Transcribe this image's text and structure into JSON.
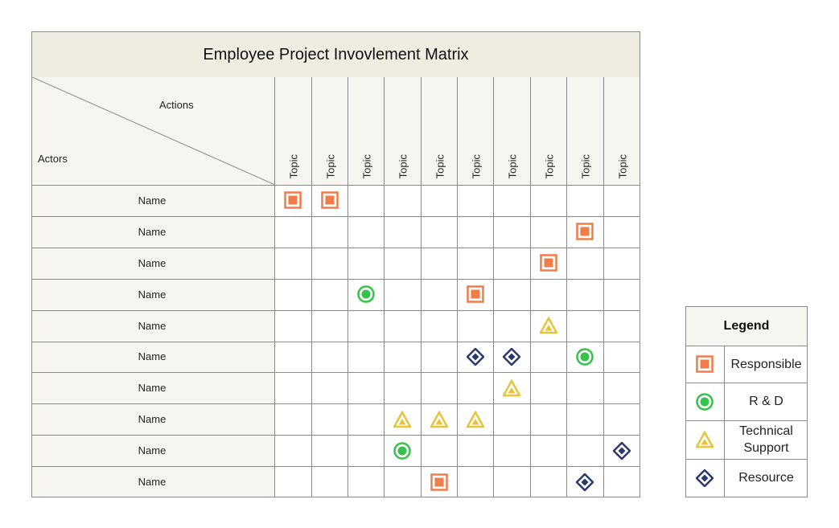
{
  "title": "Employee Project Invovlement Matrix",
  "corner": {
    "actions_label": "Actions",
    "actors_label": "Actors"
  },
  "columns": [
    "Topic",
    "Topic",
    "Topic",
    "Topic",
    "Topic",
    "Topic",
    "Topic",
    "Topic",
    "Topic",
    "Topic"
  ],
  "rows": [
    "Name",
    "Name",
    "Name",
    "Name",
    "Name",
    "Name",
    "Name",
    "Name",
    "Name",
    "Name"
  ],
  "marks": [
    {
      "row": 0,
      "col": 0,
      "type": "responsible"
    },
    {
      "row": 0,
      "col": 1,
      "type": "responsible"
    },
    {
      "row": 1,
      "col": 8,
      "type": "responsible"
    },
    {
      "row": 2,
      "col": 7,
      "type": "responsible"
    },
    {
      "row": 3,
      "col": 2,
      "type": "rnd"
    },
    {
      "row": 3,
      "col": 5,
      "type": "responsible"
    },
    {
      "row": 4,
      "col": 7,
      "type": "technical"
    },
    {
      "row": 5,
      "col": 5,
      "type": "resource"
    },
    {
      "row": 5,
      "col": 6,
      "type": "resource"
    },
    {
      "row": 5,
      "col": 8,
      "type": "rnd"
    },
    {
      "row": 6,
      "col": 6,
      "type": "technical"
    },
    {
      "row": 7,
      "col": 3,
      "type": "technical"
    },
    {
      "row": 7,
      "col": 4,
      "type": "technical"
    },
    {
      "row": 7,
      "col": 5,
      "type": "technical"
    },
    {
      "row": 8,
      "col": 3,
      "type": "rnd"
    },
    {
      "row": 8,
      "col": 9,
      "type": "resource"
    },
    {
      "row": 9,
      "col": 4,
      "type": "responsible"
    },
    {
      "row": 9,
      "col": 8,
      "type": "resource"
    }
  ],
  "legend": {
    "title": "Legend",
    "items": [
      {
        "type": "responsible",
        "label": "Responsible",
        "icon": "square-icon"
      },
      {
        "type": "rnd",
        "label": "R & D",
        "icon": "circle-icon"
      },
      {
        "type": "technical",
        "label": "Technical Support",
        "icon": "triangle-icon"
      },
      {
        "type": "resource",
        "label": "Resource",
        "icon": "diamond-icon"
      }
    ]
  },
  "colors": {
    "responsible": "#f07c4a",
    "rnd": "#35c24a",
    "technical": "#e8c43a",
    "resource": "#2a3a6e",
    "header_bg": "#f6f5f0",
    "title_bg": "#efede2",
    "grid": "#8a8a8a"
  }
}
